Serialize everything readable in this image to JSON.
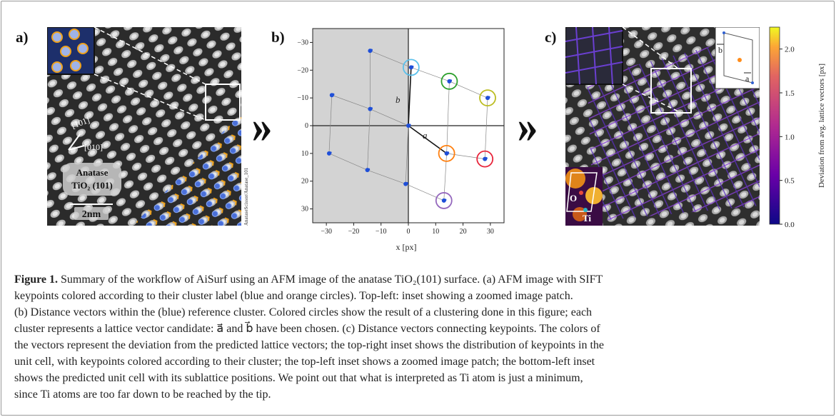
{
  "panel_a": {
    "letter": "a)",
    "dir1": "[101]",
    "dir2": "[010]",
    "label_line1": "Anatase",
    "label_line2": "TiO₂ (101)",
    "scale": "2nm",
    "side_text": "AnataseScissor/Anatase_101"
  },
  "panel_b": {
    "letter": "b)",
    "xlabel": "x [px]",
    "vec_a": "a⃗",
    "vec_b": "b⃗"
  },
  "panel_c": {
    "letter": "c)",
    "inset_b": "b",
    "inset_a": "a",
    "atom_O": "O",
    "atom_Ti": "Ti",
    "colorbar_label": "Deviation from avg. lattice vectors [px]",
    "colorbar_ticks": [
      "0.0",
      "0.5",
      "1.0",
      "1.5",
      "2.0"
    ]
  },
  "chart_data": {
    "type": "scatter",
    "xlabel": "x [px]",
    "ylabel": "",
    "xlim": [
      -35,
      35
    ],
    "ylim": [
      -35,
      35
    ],
    "y_inverted": true,
    "x_ticks": [
      -30,
      -20,
      -10,
      0,
      10,
      20,
      30
    ],
    "y_ticks": [
      -30,
      -20,
      -10,
      0,
      10,
      20,
      30
    ],
    "series": [
      {
        "values": [
          [
            1,
            -21
          ],
          [
            15,
            -16
          ],
          [
            29,
            -10
          ],
          [
            14,
            10
          ],
          [
            28,
            12
          ],
          [
            13,
            27
          ],
          [
            -14,
            -27
          ],
          [
            -28,
            -11
          ],
          [
            -14,
            -6
          ],
          [
            -29,
            10
          ],
          [
            -15,
            16
          ],
          [
            -1,
            21
          ],
          [
            0,
            0
          ]
        ]
      }
    ],
    "cluster_circles": [
      {
        "x": 1,
        "y": -21,
        "color": "#5bc0eb"
      },
      {
        "x": 15,
        "y": -16,
        "color": "#2ca02c"
      },
      {
        "x": 29,
        "y": -10,
        "color": "#bcbd22"
      },
      {
        "x": 14,
        "y": 10,
        "color": "#ff7f0e"
      },
      {
        "x": 28,
        "y": 12,
        "color": "#e8253b"
      },
      {
        "x": 13,
        "y": 27,
        "color": "#9467bd"
      }
    ]
  },
  "caption": {
    "figure_label": "Figure 1.",
    "line1_rest": " Summary of the workflow of AiSurf using an AFM image of the anatase TiO₂(101) surface. (a) AFM image with SIFT",
    "line2": "keypoints colored according to their cluster label (blue and orange circles). Top-left: inset showing a zoomed image patch.",
    "line3": "(b) Distance vectors within the (blue) reference cluster. Colored circles show the result of a clustering done in this figure; each",
    "line4": "cluster represents a lattice vector candidate: a⃗ and b⃗ have been chosen. (c) Distance vectors connecting keypoints. The colors of",
    "line5": "the vectors represent the deviation from the predicted lattice vectors; the top-right inset shows the distribution of keypoints in the",
    "line6": "unit cell, with keypoints colored according to their cluster; the top-left inset shows a zoomed image patch; the bottom-left inset",
    "line7": "shows the predicted unit cell with its sublattice positions. We point out that what is interpreted as Ti atom is just a minimum,",
    "line8": "since Ti atoms are too far down to be reached by the tip."
  }
}
